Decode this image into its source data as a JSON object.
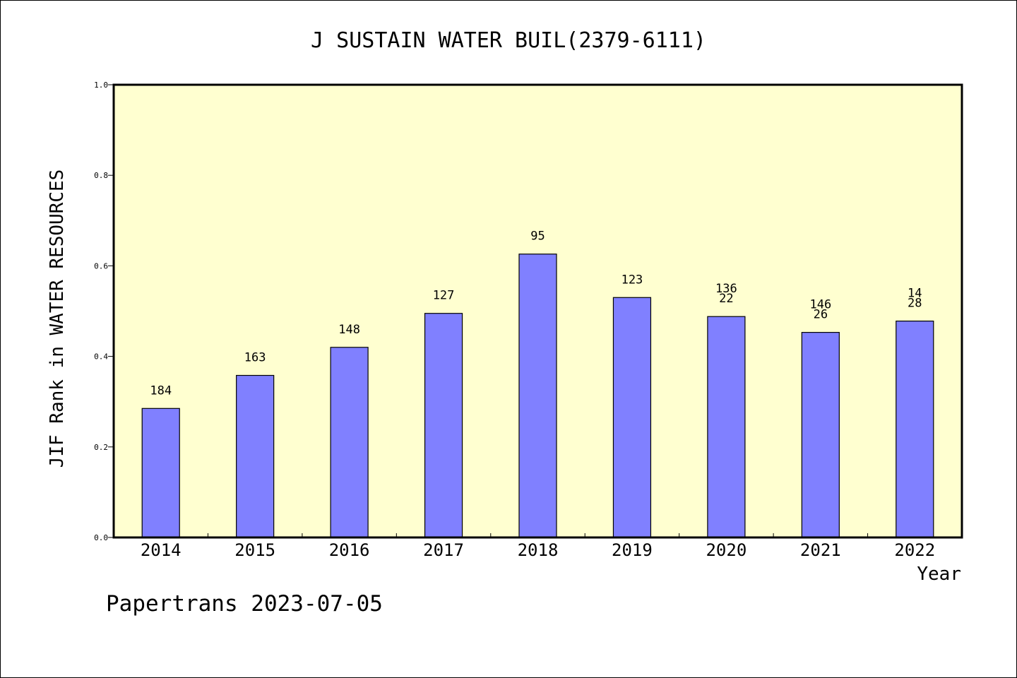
{
  "title": "J SUSTAIN WATER BUIL(2379-6111)",
  "footer": "Papertrans 2023-07-05",
  "colors": {
    "plot_background": "#ffffd0",
    "bar_fill": "#8080ff",
    "bar_stroke": "#000000",
    "axis": "#000000"
  },
  "chart_data": {
    "type": "bar",
    "title": "J SUSTAIN WATER BUIL(2379-6111)",
    "xlabel": "Year",
    "ylabel": "JIF Rank in WATER RESOURCES",
    "ylim": [
      0,
      1.0
    ],
    "yticks": [
      "0.0",
      "0.2",
      "0.4",
      "0.6",
      "0.8",
      "1.0"
    ],
    "grid": false,
    "categories": [
      "2014",
      "2015",
      "2016",
      "2017",
      "2018",
      "2019",
      "2020",
      "2021",
      "2022"
    ],
    "values": [
      0.285,
      0.358,
      0.42,
      0.495,
      0.626,
      0.53,
      0.488,
      0.453,
      0.478
    ],
    "labels": [
      [
        "184"
      ],
      [
        "163"
      ],
      [
        "148"
      ],
      [
        "127"
      ],
      [
        "95"
      ],
      [
        "123"
      ],
      [
        "136",
        "22"
      ],
      [
        "146",
        "26"
      ],
      [
        "14",
        "28"
      ]
    ]
  }
}
